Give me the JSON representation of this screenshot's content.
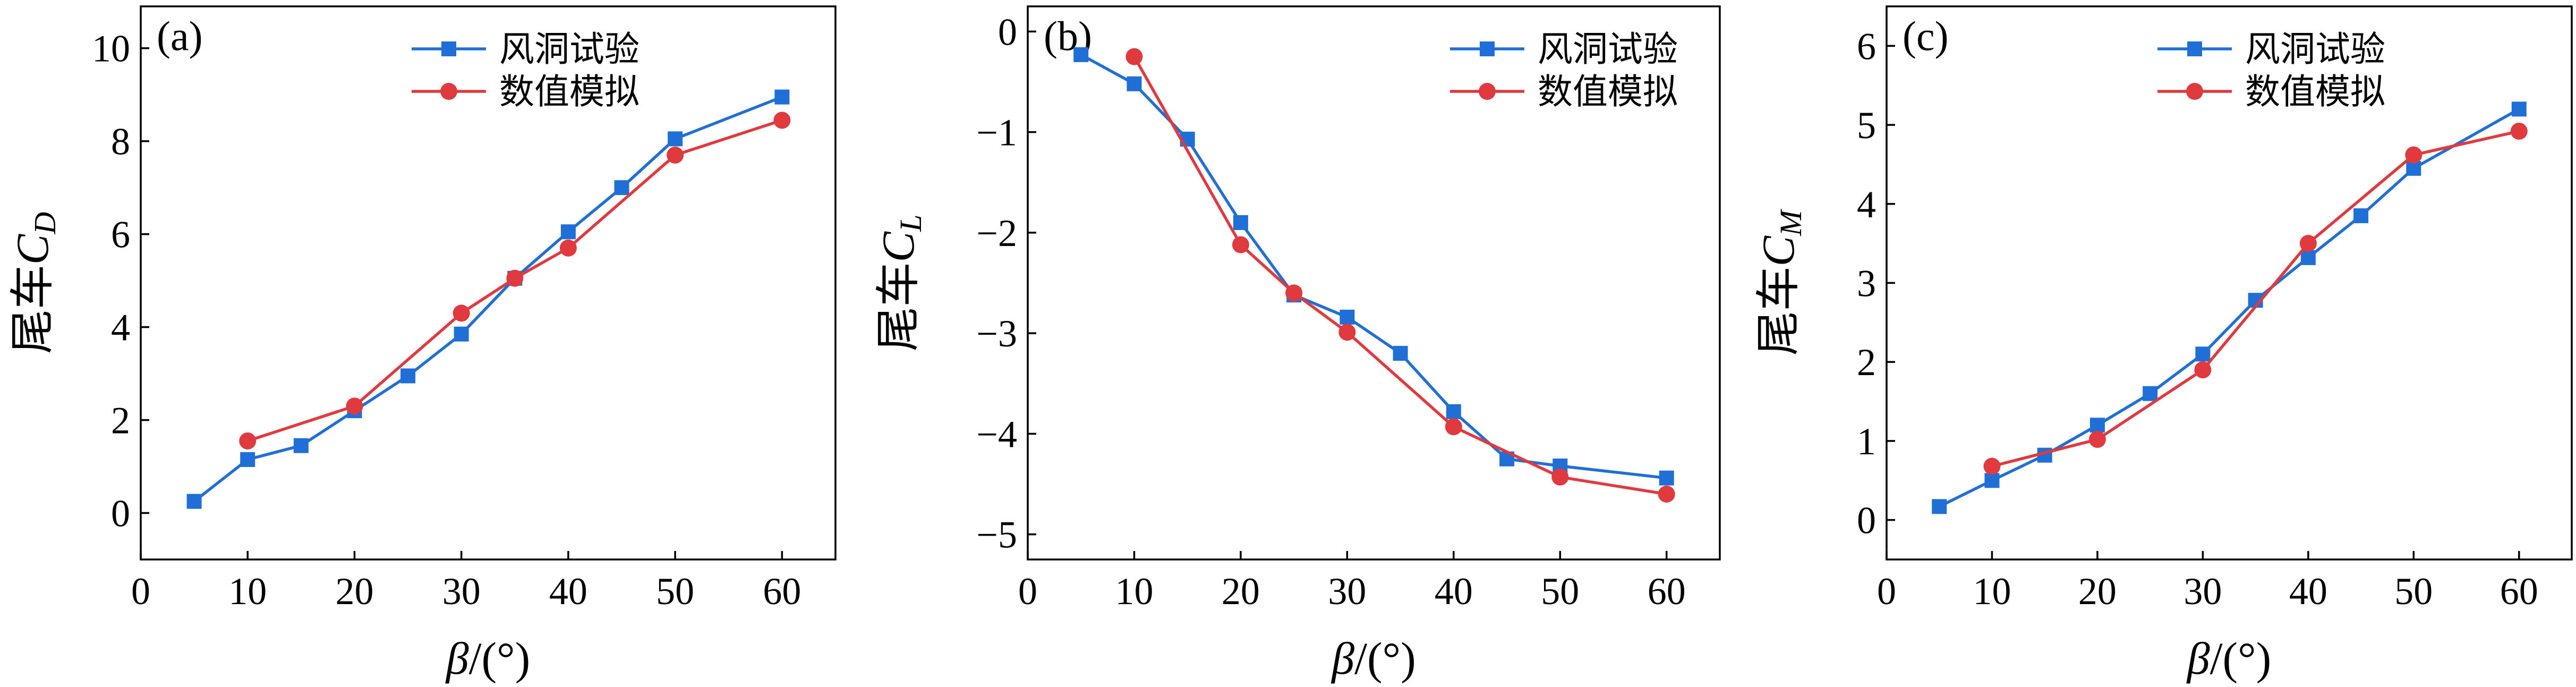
{
  "colors": {
    "experiment": "#1f6fd6",
    "simulation": "#e0393e"
  },
  "legend": {
    "experiment": "风洞试验",
    "simulation": "数值模拟"
  },
  "chart_data": [
    {
      "type": "line",
      "panel_label": "(a)",
      "xlabel": "β/(°)",
      "ylabel": "尾车C_D",
      "xlim": [
        0,
        65
      ],
      "ylim": [
        -1,
        10.9
      ],
      "xticks": [
        0,
        10,
        20,
        30,
        40,
        50,
        60
      ],
      "yticks": [
        0,
        2,
        4,
        6,
        8,
        10
      ],
      "legend_position": "top-center",
      "series": [
        {
          "name": "风洞试验",
          "marker": "square",
          "x": [
            5,
            10,
            15,
            20,
            25,
            30,
            35,
            40,
            45,
            50,
            60
          ],
          "y": [
            0.25,
            1.15,
            1.45,
            2.2,
            2.95,
            3.85,
            5.05,
            6.05,
            7.0,
            8.05,
            8.95
          ]
        },
        {
          "name": "数值模拟",
          "marker": "circle",
          "x": [
            10,
            20,
            30,
            35,
            40,
            50,
            60
          ],
          "y": [
            1.55,
            2.3,
            4.3,
            5.05,
            5.7,
            7.7,
            8.45
          ]
        }
      ]
    },
    {
      "type": "line",
      "panel_label": "(b)",
      "xlabel": "β/(°)",
      "ylabel": "尾车C_L",
      "xlim": [
        0,
        65
      ],
      "ylim": [
        -5.25,
        0.25
      ],
      "xticks": [
        0,
        10,
        20,
        30,
        40,
        50,
        60
      ],
      "yticks": [
        0,
        -1,
        -2,
        -3,
        -4,
        -5
      ],
      "legend_position": "top-right",
      "series": [
        {
          "name": "风洞试验",
          "marker": "square",
          "x": [
            5,
            10,
            15,
            20,
            25,
            30,
            35,
            40,
            45,
            50,
            60
          ],
          "y": [
            -0.23,
            -0.52,
            -1.07,
            -1.9,
            -2.62,
            -2.84,
            -3.2,
            -3.78,
            -4.25,
            -4.32,
            -4.44
          ]
        },
        {
          "name": "数值模拟",
          "marker": "circle",
          "x": [
            10,
            20,
            25,
            30,
            40,
            50,
            60
          ],
          "y": [
            -0.25,
            -2.12,
            -2.6,
            -2.99,
            -3.93,
            -4.43,
            -4.6
          ]
        }
      ]
    },
    {
      "type": "line",
      "panel_label": "(c)",
      "xlabel": "β/(°)",
      "ylabel": "尾车C_M",
      "xlim": [
        0,
        65
      ],
      "ylim": [
        -0.5,
        6.5
      ],
      "xticks": [
        0,
        10,
        20,
        30,
        40,
        50,
        60
      ],
      "yticks": [
        0,
        1,
        2,
        3,
        4,
        5,
        6
      ],
      "legend_position": "top-center",
      "series": [
        {
          "name": "风洞试验",
          "marker": "square",
          "x": [
            5,
            10,
            15,
            20,
            25,
            30,
            35,
            40,
            45,
            50,
            60
          ],
          "y": [
            0.17,
            0.5,
            0.82,
            1.2,
            1.6,
            2.1,
            2.78,
            3.32,
            3.85,
            4.45,
            5.2
          ]
        },
        {
          "name": "数值模拟",
          "marker": "circle",
          "x": [
            10,
            20,
            30,
            40,
            50,
            60
          ],
          "y": [
            0.68,
            1.02,
            1.9,
            3.5,
            4.62,
            4.92
          ]
        }
      ]
    }
  ]
}
